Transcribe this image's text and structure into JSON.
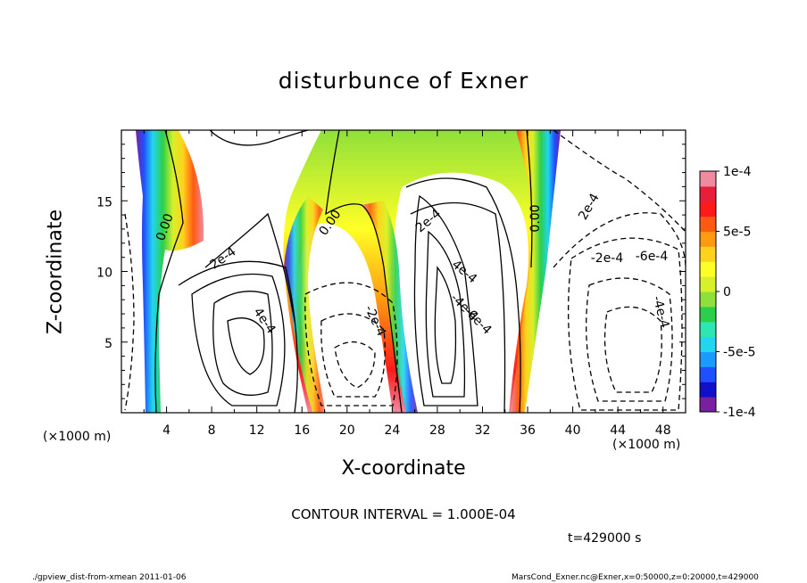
{
  "chart_data": {
    "type": "heatmap",
    "title": "disturbunce of Exner",
    "xlabel": "X-coordinate",
    "ylabel": "Z-coordinate",
    "x_unit": "(×1000 m)",
    "x_unit_right": "(×1000 m)",
    "xlim": [
      0,
      50
    ],
    "ylim": [
      0,
      20
    ],
    "x_ticks": [
      "4",
      "8",
      "12",
      "16",
      "20",
      "24",
      "28",
      "32",
      "36",
      "40",
      "44",
      "48"
    ],
    "y_ticks": [
      "5",
      "10",
      "15"
    ],
    "colorbar": {
      "range": [
        -0.0001,
        0.0001
      ],
      "labels": [
        "1e-4",
        "5e-5",
        "0",
        "-5e-5",
        "-1e-4"
      ],
      "colors": [
        "#7a1fa0",
        "#1010c8",
        "#1f50ff",
        "#1c9bff",
        "#22d5f0",
        "#2ee6b0",
        "#2ccf4a",
        "#8fe03a",
        "#d8f02a",
        "#ffff26",
        "#ffd21c",
        "#ff9a10",
        "#ff5a12",
        "#ff1a1a",
        "#e81e3a",
        "#f08aa0"
      ]
    },
    "contour_labels": [
      "0.00",
      "0.00",
      "0.00",
      "2e-4",
      "2e-4",
      "2e-4",
      "4e-4",
      "4e-4",
      "-2e-4",
      "-4e-4",
      "-6e-4",
      "-2e-4",
      "-4e-4",
      "-6e-4"
    ],
    "contour_interval": "CONTOUR INTERVAL = 1.000E-04"
  },
  "time_label": "t=429000 s",
  "footer": {
    "left": "./gpview_dist-from-xmean  2011-01-06",
    "right": "MarsCond_Exner.nc@Exner,x=0:50000,z=0:20000,t=429000"
  }
}
